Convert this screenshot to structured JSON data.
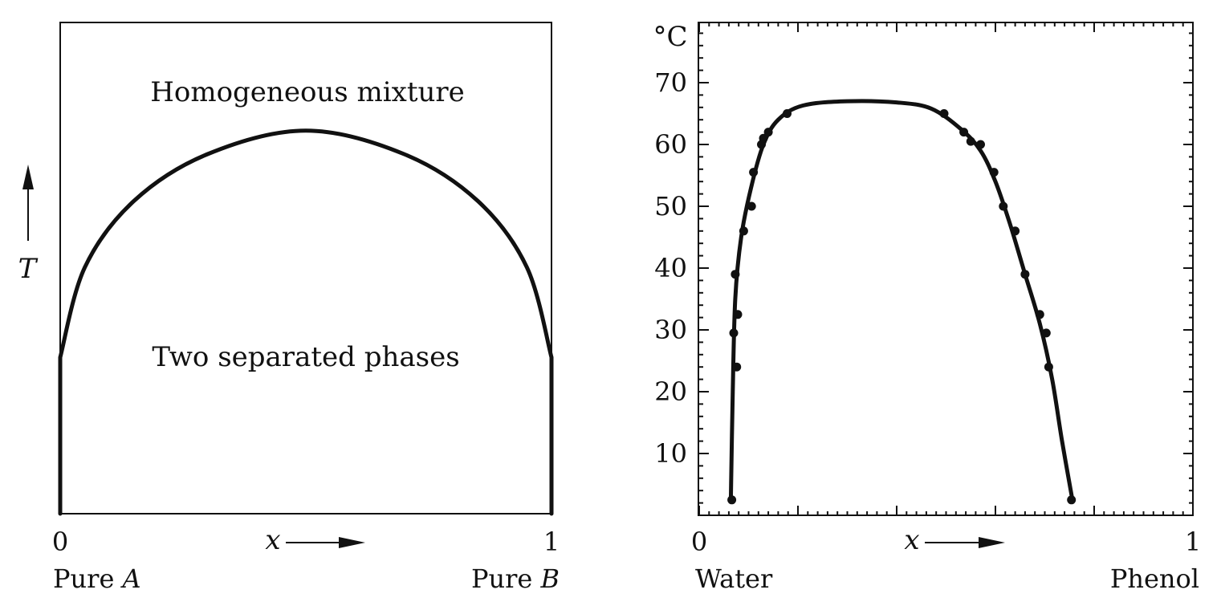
{
  "chart_data": [
    {
      "type": "line",
      "title": "",
      "xlabel": "x",
      "ylabel": "T",
      "xlim": [
        0,
        1
      ],
      "x_tick_labels": [
        "0",
        "1"
      ],
      "x_end_labels": {
        "left_prefix": "Pure ",
        "left_var": "A",
        "right_prefix": "Pure ",
        "right_var": "B"
      },
      "annotations": {
        "upper_region": "Homogeneous mixture",
        "lower_region": "Two separated phases"
      },
      "curve": {
        "description_points": [
          {
            "x": 0.0,
            "y": 0.0
          },
          {
            "x": 0.0,
            "y": 0.4
          },
          {
            "x": 0.05,
            "y": 0.63
          },
          {
            "x": 0.15,
            "y": 0.8
          },
          {
            "x": 0.3,
            "y": 0.92
          },
          {
            "x": 0.5,
            "y": 0.98
          },
          {
            "x": 0.7,
            "y": 0.92
          },
          {
            "x": 0.85,
            "y": 0.8
          },
          {
            "x": 0.95,
            "y": 0.63
          },
          {
            "x": 1.0,
            "y": 0.4
          },
          {
            "x": 1.0,
            "y": 0.0
          }
        ]
      },
      "grid": false
    },
    {
      "type": "scatter",
      "title": "",
      "xlabel": "x",
      "ylabel": "°C",
      "xlim": [
        0,
        1
      ],
      "ylim": [
        0,
        80
      ],
      "x_tick_labels": [
        "0",
        "1"
      ],
      "x_end_labels": {
        "left": "Water",
        "right": "Phenol"
      },
      "y_ticks": [
        10,
        20,
        30,
        40,
        50,
        60,
        70
      ],
      "points": [
        {
          "x": 0.066,
          "y": 2.5
        },
        {
          "x": 0.07,
          "y": 29.5
        },
        {
          "x": 0.073,
          "y": 39
        },
        {
          "x": 0.076,
          "y": 24
        },
        {
          "x": 0.078,
          "y": 32.5
        },
        {
          "x": 0.09,
          "y": 46
        },
        {
          "x": 0.106,
          "y": 50
        },
        {
          "x": 0.11,
          "y": 55.5
        },
        {
          "x": 0.126,
          "y": 60
        },
        {
          "x": 0.13,
          "y": 61
        },
        {
          "x": 0.14,
          "y": 62
        },
        {
          "x": 0.178,
          "y": 65
        },
        {
          "x": 0.496,
          "y": 65
        },
        {
          "x": 0.536,
          "y": 62
        },
        {
          "x": 0.55,
          "y": 60.5
        },
        {
          "x": 0.57,
          "y": 60
        },
        {
          "x": 0.597,
          "y": 55.5
        },
        {
          "x": 0.616,
          "y": 50
        },
        {
          "x": 0.64,
          "y": 46
        },
        {
          "x": 0.66,
          "y": 39
        },
        {
          "x": 0.69,
          "y": 32.5
        },
        {
          "x": 0.703,
          "y": 29.5
        },
        {
          "x": 0.708,
          "y": 24
        },
        {
          "x": 0.754,
          "y": 2.5
        }
      ],
      "fit_curve": [
        {
          "x": 0.064,
          "y": 2.5
        },
        {
          "x": 0.068,
          "y": 20
        },
        {
          "x": 0.073,
          "y": 35
        },
        {
          "x": 0.085,
          "y": 45
        },
        {
          "x": 0.105,
          "y": 53
        },
        {
          "x": 0.13,
          "y": 60
        },
        {
          "x": 0.16,
          "y": 64
        },
        {
          "x": 0.21,
          "y": 66.3
        },
        {
          "x": 0.3,
          "y": 67
        },
        {
          "x": 0.4,
          "y": 66.8
        },
        {
          "x": 0.47,
          "y": 65.8
        },
        {
          "x": 0.53,
          "y": 62.5
        },
        {
          "x": 0.57,
          "y": 59
        },
        {
          "x": 0.6,
          "y": 54
        },
        {
          "x": 0.63,
          "y": 47
        },
        {
          "x": 0.66,
          "y": 39
        },
        {
          "x": 0.69,
          "y": 31
        },
        {
          "x": 0.715,
          "y": 22
        },
        {
          "x": 0.735,
          "y": 12
        },
        {
          "x": 0.756,
          "y": 2.5
        }
      ],
      "grid": false
    }
  ]
}
